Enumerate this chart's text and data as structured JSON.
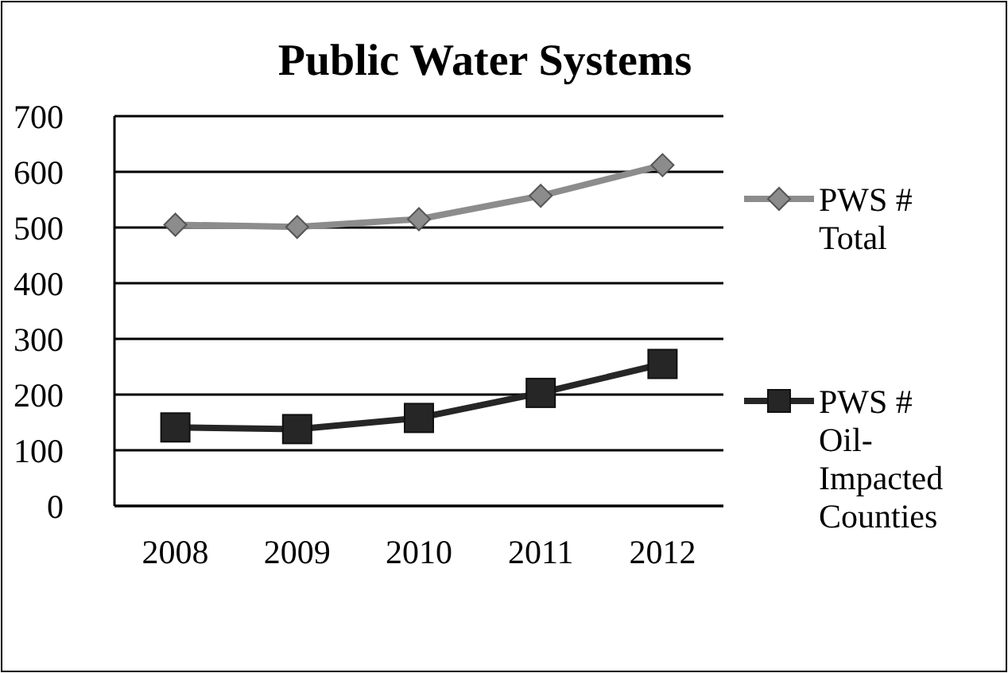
{
  "chart_data": {
    "type": "line",
    "title": "Public Water Systems",
    "categories": [
      "2008",
      "2009",
      "2010",
      "2011",
      "2012"
    ],
    "series": [
      {
        "name": "PWS # Total",
        "color": "#8c8c8c",
        "marker": "diamond",
        "values": [
          505,
          501,
          515,
          557,
          612
        ]
      },
      {
        "name": "PWS # Oil-Impacted Counties",
        "color": "#262626",
        "marker": "square",
        "values": [
          141,
          138,
          158,
          203,
          255
        ]
      }
    ],
    "ylim": [
      0,
      700
    ],
    "yticks": [
      0,
      100,
      200,
      300,
      400,
      500,
      600,
      700
    ],
    "grid": "y",
    "legend": "right"
  }
}
